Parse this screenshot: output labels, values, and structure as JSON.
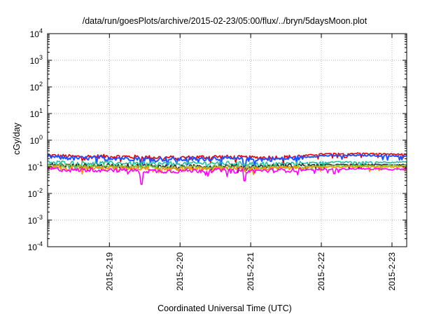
{
  "chart_data": {
    "type": "line",
    "title": "/data/run/goesPlots/archive/2015-02-23/05:00/flux/../bryn/5daysMoon.plot",
    "xlabel": "Coordinated Universal Time (UTC)",
    "ylabel": "cGy/day",
    "y_scale": "log",
    "ylim": [
      0.0001,
      10000
    ],
    "y_ticks": [
      {
        "base": "10",
        "exp": "-4",
        "value": 0.0001
      },
      {
        "base": "10",
        "exp": "-3",
        "value": 0.001
      },
      {
        "base": "10",
        "exp": "-2",
        "value": 0.01
      },
      {
        "base": "10",
        "exp": "-1",
        "value": 0.1
      },
      {
        "base": "10",
        "exp": "0",
        "value": 1
      },
      {
        "base": "10",
        "exp": "1",
        "value": 10
      },
      {
        "base": "10",
        "exp": "2",
        "value": 100
      },
      {
        "base": "10",
        "exp": "3",
        "value": 1000
      },
      {
        "base": "10",
        "exp": "4",
        "value": 10000
      }
    ],
    "x_type": "date",
    "xlim": [
      "2015-02-18T03:00",
      "2015-02-23T05:00"
    ],
    "x_ticks": [
      "2015-2-19",
      "2015-2-20",
      "2015-2-21",
      "2015-2-22",
      "2015-2-23"
    ],
    "x_tick_values": [
      "2015-02-19",
      "2015-02-20",
      "2015-02-21",
      "2015-02-22",
      "2015-02-23"
    ],
    "grid": true,
    "legend": "none",
    "x": [
      "2015-02-18T03:00",
      "2015-02-18T12:00",
      "2015-02-19T00:00",
      "2015-02-19T12:00",
      "2015-02-20T00:00",
      "2015-02-20T12:00",
      "2015-02-21T00:00",
      "2015-02-21T12:00",
      "2015-02-22T00:00",
      "2015-02-22T12:00",
      "2015-02-23T00:00",
      "2015-02-23T05:00"
    ],
    "series": [
      {
        "color": "#e00000",
        "values": [
          0.27,
          0.24,
          0.25,
          0.23,
          0.22,
          0.24,
          0.22,
          0.23,
          0.3,
          0.32,
          0.3,
          0.29
        ]
      },
      {
        "color": "#2050ff",
        "values": [
          0.24,
          0.21,
          0.22,
          0.2,
          0.19,
          0.21,
          0.19,
          0.2,
          0.26,
          0.27,
          0.26,
          0.25
        ]
      },
      {
        "color": "#20c0a0",
        "values": [
          0.15,
          0.14,
          0.14,
          0.13,
          0.13,
          0.14,
          0.13,
          0.13,
          0.15,
          0.15,
          0.15,
          0.15
        ]
      },
      {
        "color": "#303030",
        "values": [
          0.12,
          0.11,
          0.11,
          0.11,
          0.1,
          0.11,
          0.1,
          0.11,
          0.12,
          0.12,
          0.12,
          0.12
        ]
      },
      {
        "color": "#80d040",
        "values": [
          0.11,
          0.1,
          0.1,
          0.1,
          0.09,
          0.1,
          0.09,
          0.1,
          0.11,
          0.11,
          0.11,
          0.11
        ]
      },
      {
        "color": "#ff9000",
        "values": [
          0.1,
          0.09,
          0.09,
          0.09,
          0.085,
          0.09,
          0.085,
          0.09,
          0.1,
          0.1,
          0.1,
          0.1
        ]
      },
      {
        "color": "#ff00ff",
        "values": [
          0.085,
          0.075,
          0.08,
          0.07,
          0.07,
          0.075,
          0.07,
          0.075,
          0.08,
          0.085,
          0.08,
          0.08
        ]
      }
    ],
    "dips": [
      {
        "x": "2015-02-19T11:00",
        "values": {
          "#ff00ff": 0.022,
          "#2050ff": 0.09
        }
      },
      {
        "x": "2015-02-20T22:00",
        "values": {
          "#ff00ff": 0.03,
          "#2050ff": 0.08
        }
      }
    ]
  }
}
